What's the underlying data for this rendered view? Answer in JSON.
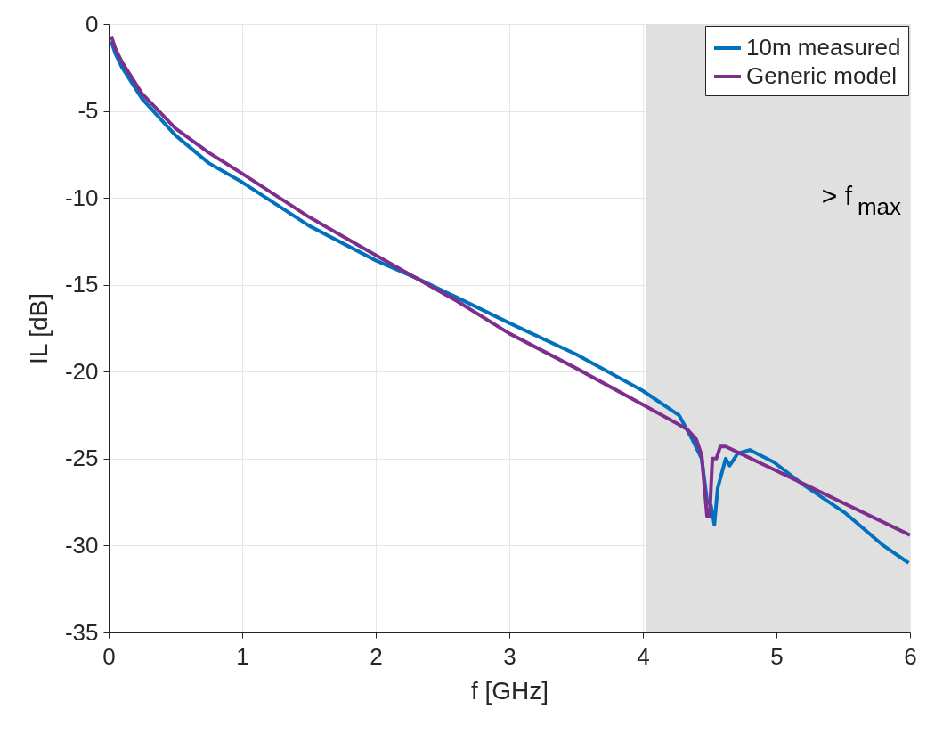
{
  "chart_data": {
    "type": "line",
    "xlabel": "f [GHz]",
    "ylabel": "IL [dB]",
    "xlim": [
      0,
      6
    ],
    "ylim": [
      -35,
      0
    ],
    "xticks": [
      0,
      1,
      2,
      3,
      4,
      5,
      6
    ],
    "yticks": [
      -35,
      -30,
      -25,
      -20,
      -15,
      -10,
      -5,
      0
    ],
    "grid": true,
    "legend": "top right",
    "line_style": "solid",
    "marker": "none",
    "bands": [
      {
        "axis": "x",
        "from": 4.02,
        "to": 6,
        "label": "> f$_{max}$",
        "color": "#e0e0e0"
      }
    ],
    "series": [
      {
        "name": "10m measured",
        "color": "#0072bd",
        "x": [
          0.02,
          0.05,
          0.1,
          0.25,
          0.5,
          0.75,
          1,
          1.5,
          2,
          2.3,
          2.6,
          3,
          3.5,
          4,
          4.27,
          4.37,
          4.44,
          4.48,
          4.51,
          4.535,
          4.56,
          4.62,
          4.65,
          4.71,
          4.8,
          4.98,
          5.2,
          5.51,
          5.8,
          5.99
        ],
        "values": [
          -1.0,
          -1.7,
          -2.5,
          -4.3,
          -6.4,
          -8.0,
          -9.1,
          -11.6,
          -13.6,
          -14.6,
          -15.7,
          -17.2,
          -19.0,
          -21.1,
          -22.5,
          -23.9,
          -25.0,
          -27.4,
          -27.7,
          -28.8,
          -26.7,
          -25.0,
          -25.4,
          -24.7,
          -24.5,
          -25.2,
          -26.5,
          -28.1,
          -30.0,
          -31.0
        ]
      },
      {
        "name": "Generic model",
        "color": "#7e2f8e",
        "x": [
          0.02,
          0.05,
          0.1,
          0.25,
          0.5,
          0.75,
          1,
          1.5,
          2,
          2.3,
          2.6,
          3,
          3.5,
          4,
          4.33,
          4.4,
          4.44,
          4.48,
          4.5,
          4.52,
          4.55,
          4.58,
          4.62,
          5,
          6
        ],
        "values": [
          -0.7,
          -1.4,
          -2.2,
          -4.0,
          -6.0,
          -7.4,
          -8.6,
          -11.1,
          -13.3,
          -14.6,
          -15.9,
          -17.8,
          -19.8,
          -21.9,
          -23.3,
          -23.9,
          -24.8,
          -28.3,
          -28.3,
          -25.0,
          -25.0,
          -24.3,
          -24.3,
          -25.7,
          -29.4
        ]
      }
    ]
  }
}
